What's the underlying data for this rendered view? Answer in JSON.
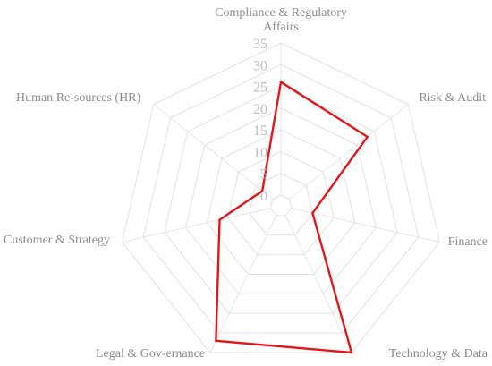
{
  "chart_data": {
    "type": "radar",
    "categories": [
      "Compliance & Regulatory Affairs",
      "Risk & Audit",
      "Finance",
      "Technology & Data",
      "Legal & Gov-ernance",
      "Customer & Strategy",
      "Human Re-sources (HR)"
    ],
    "category_label_lines": [
      [
        "Compliance & Regulatory",
        "Affairs"
      ],
      [
        "Risk & Audit"
      ],
      [
        "Finance"
      ],
      [
        "Technology & Data"
      ],
      [
        "Legal & Gov-ernance"
      ],
      [
        "Customer & Strategy"
      ],
      [
        "Human Re-sources (HR)"
      ]
    ],
    "series": [
      {
        "values": [
          26,
          23,
          5,
          35,
          32,
          12,
          3
        ]
      }
    ],
    "rlim": [
      0,
      35
    ],
    "ticks": [
      "0",
      "5",
      "10",
      "15",
      "20",
      "25",
      "30",
      "35"
    ],
    "grid": true,
    "colors": {
      "series": "#e3161b",
      "grid": "#e1e1e1",
      "labels": "#8c8c8c",
      "ticks": "#bdbdbd"
    }
  }
}
